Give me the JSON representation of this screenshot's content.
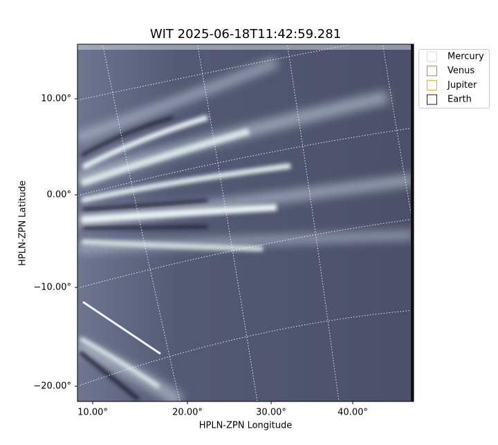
{
  "figure": {
    "title": "WIT 2025-06-18T11:42:59.281",
    "x_label": "HPLN-ZPN Longitude",
    "y_label": "HPLN-ZPN Latitude",
    "x_ticks": [
      "10.00°",
      "20.00°",
      "30.00°",
      "40.00°"
    ],
    "y_ticks": [
      "10.00°",
      "0.00°",
      "−10.00°",
      "−20.00°"
    ],
    "legend": [
      {
        "name": "Mercury",
        "color": "#d9d9d9"
      },
      {
        "name": "Venus",
        "color": "#e0782e"
      },
      {
        "name": "Jupiter",
        "color": "#e6b01e"
      },
      {
        "name": "Earth",
        "color": "#15157a"
      }
    ]
  }
}
